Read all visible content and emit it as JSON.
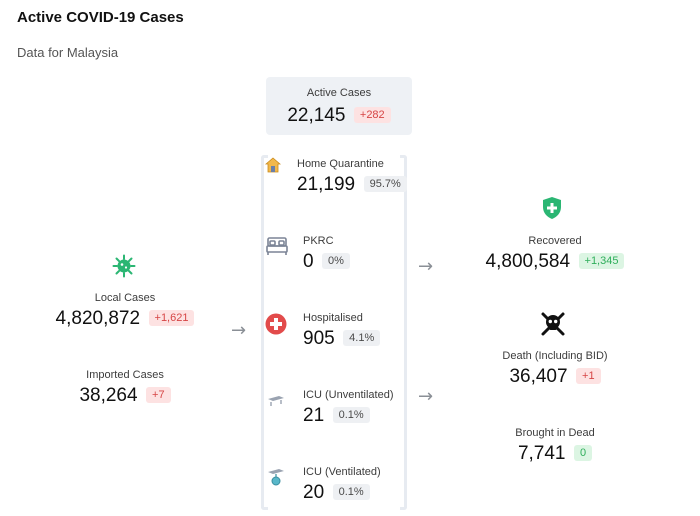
{
  "header": {
    "title": "Active COVID-19 Cases",
    "subtitle": "Data for Malaysia"
  },
  "active": {
    "label": "Active Cases",
    "value": "22,145",
    "delta": "+282"
  },
  "left": {
    "local": {
      "label": "Local Cases",
      "value": "4,820,872",
      "delta": "+1,621"
    },
    "imported": {
      "label": "Imported Cases",
      "value": "38,264",
      "delta": "+7"
    }
  },
  "middle": [
    {
      "label": "Home Quarantine",
      "value": "21,199",
      "pct": "95.7%"
    },
    {
      "label": "PKRC",
      "value": "0",
      "pct": "0%"
    },
    {
      "label": "Hospitalised",
      "value": "905",
      "pct": "4.1%"
    },
    {
      "label": "ICU (Unventilated)",
      "value": "21",
      "pct": "0.1%"
    },
    {
      "label": "ICU (Ventilated)",
      "value": "20",
      "pct": "0.1%"
    }
  ],
  "right": {
    "recovered": {
      "label": "Recovered",
      "value": "4,800,584",
      "delta": "+1,345"
    },
    "death": {
      "label": "Death (Including BID)",
      "value": "36,407",
      "delta": "+1"
    },
    "bid": {
      "label": "Brought in Dead",
      "value": "7,741",
      "delta": "0"
    }
  },
  "icons": {
    "virus": "virus-icon",
    "home": "home-icon",
    "bed": "bed-icon",
    "hospital": "hospital-cross-icon",
    "icu": "icu-bed-icon",
    "ventilator": "ventilator-icon",
    "shield": "shield-plus-icon",
    "skull": "skull-crossbones-icon",
    "arrow": "arrow-right-icon"
  },
  "colors": {
    "badge_red_bg": "#fde2e2",
    "badge_red_fg": "#d64545",
    "badge_green_bg": "#dcf5e3",
    "badge_green_fg": "#2fae5b",
    "badge_gray_bg": "#eef0f3",
    "accent_green": "#2bb673"
  }
}
